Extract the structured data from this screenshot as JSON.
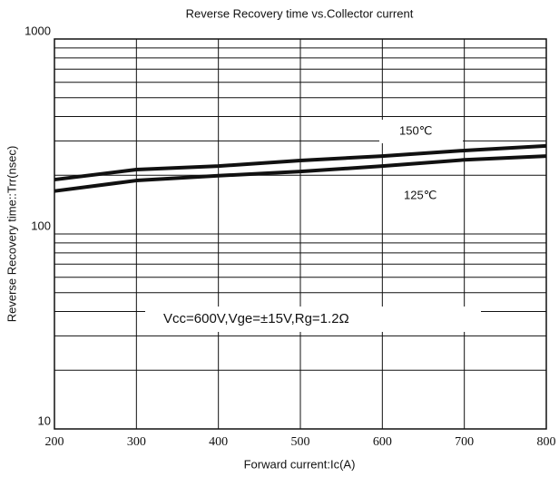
{
  "chart_data": {
    "type": "line",
    "title": "Reverse Recovery time vs.Collector current",
    "xlabel": "Forward current:Ic(A)",
    "ylabel": "Reverse Recovery time::Trr(nsec)",
    "annotation": "Vcc=600V,Vge=±15V,Rg=1.2Ω",
    "x": [
      200,
      300,
      400,
      500,
      600,
      700,
      800
    ],
    "series": [
      {
        "name": "150℃",
        "color": "#111111",
        "values": [
          190,
          214,
          223,
          238,
          251,
          268,
          283
        ]
      },
      {
        "name": "125℃",
        "color": "#111111",
        "values": [
          166,
          188,
          199,
          209,
          223,
          240,
          251
        ]
      }
    ],
    "xlim": [
      200,
      800
    ],
    "xticks": [
      200,
      300,
      400,
      500,
      600,
      700,
      800
    ],
    "ylim": [
      10,
      1000
    ],
    "yticks": [
      10,
      100,
      1000
    ],
    "y_minor_ticks": [
      20,
      30,
      40,
      50,
      60,
      70,
      80,
      90,
      200,
      300,
      400,
      500,
      600,
      700,
      800,
      900
    ],
    "log_y": true,
    "grid": true
  }
}
